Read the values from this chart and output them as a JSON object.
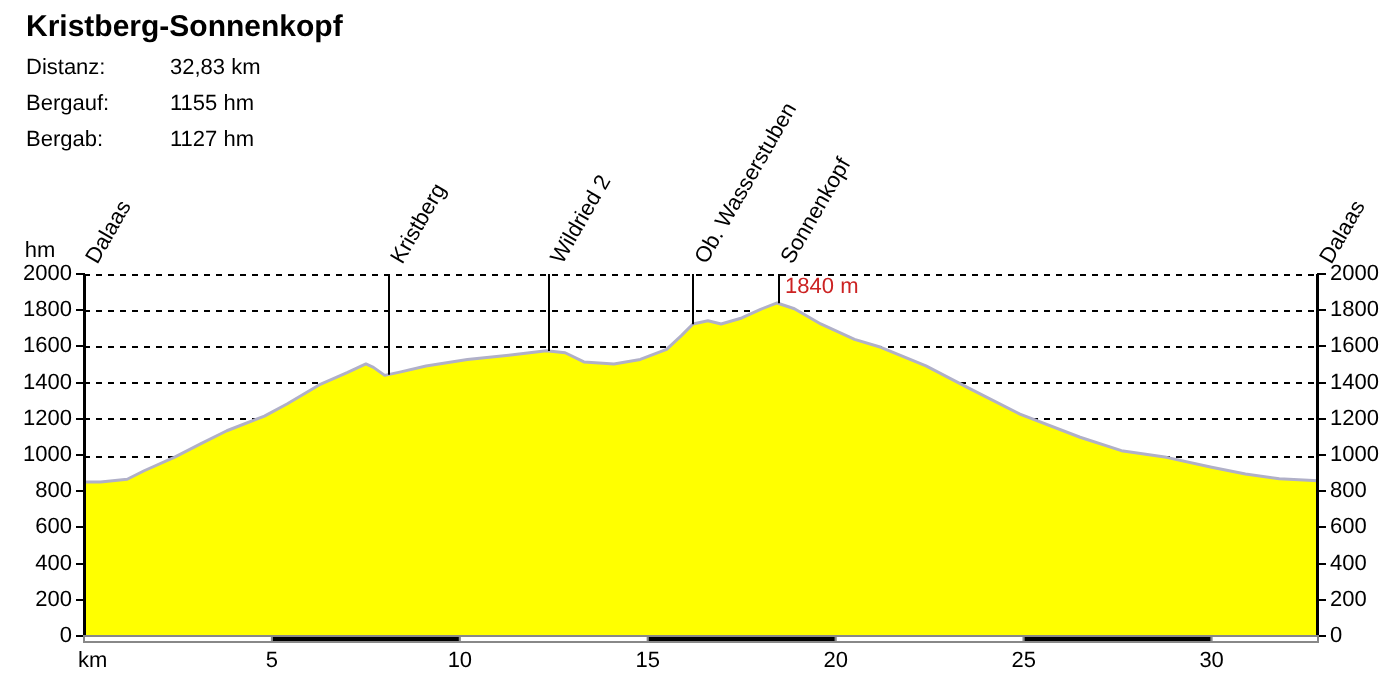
{
  "chart_data": {
    "type": "area",
    "title": "Kristberg-Sonnenkopf",
    "ylabel": "hm",
    "xlabel": "km",
    "annotations": [
      "Distanz: 32,83 km",
      "Bergauf: 1155 hm",
      "Bergab: 1127 hm",
      {
        "text": "1840 m",
        "x": 18.44,
        "y": 1840
      },
      "Dalaas",
      "Dalaas"
    ],
    "x": [
      0,
      0.44,
      1.15,
      1.6,
      2.4,
      3.1,
      3.8,
      4.8,
      5.4,
      6.3,
      7.0,
      7.5,
      7.7,
      8.0,
      8.4,
      9.1,
      10.2,
      11.3,
      12.3,
      12.8,
      13.3,
      14.1,
      14.8,
      15.5,
      15.9,
      16.2,
      16.6,
      16.95,
      17.5,
      18.0,
      18.44,
      18.9,
      19.6,
      20.5,
      21.2,
      22.4,
      23.5,
      24.9,
      26.5,
      27.6,
      28.8,
      30.0,
      30.9,
      31.8,
      32.83
    ],
    "series": [
      {
        "color": "#ffff00",
        "values": [
          851,
          851,
          866,
          913,
          987,
          1061,
          1134,
          1215,
          1282,
          1392,
          1455,
          1503,
          1484,
          1440,
          1458,
          1492,
          1528,
          1551,
          1576,
          1565,
          1514,
          1503,
          1528,
          1584,
          1661,
          1724,
          1742,
          1724,
          1757,
          1805,
          1840,
          1808,
          1724,
          1639,
          1595,
          1492,
          1374,
          1226,
          1098,
          1024,
          987,
          932,
          895,
          869,
          858
        ]
      }
    ],
    "xlim": [
      0,
      32.83
    ],
    "xticks": [
      {
        "value": 0,
        "label": null
      },
      5,
      10,
      15,
      20,
      25,
      30
    ],
    "ylim": [
      0,
      2000
    ],
    "yticks": [
      0,
      200,
      400,
      600,
      800,
      1000,
      1200,
      1400,
      1600,
      1800,
      2000
    ],
    "y2lim": [
      0,
      2000
    ],
    "y2ticks": [
      0,
      200,
      400,
      600,
      800,
      1000,
      1200,
      1400,
      1600,
      1800,
      2000
    ],
    "grid": "y",
    "legend": false,
    "ref_lines": [
      {
        "axis": "x",
        "value": 8.08,
        "label": "Kristberg"
      },
      {
        "axis": "x",
        "value": 12.37,
        "label": "Wildried 2"
      },
      {
        "axis": "x",
        "value": 16.19,
        "label": "Ob. Wasserstuben"
      },
      {
        "axis": "x",
        "value": 18.47,
        "label": "Sonnenkopf"
      }
    ]
  }
}
